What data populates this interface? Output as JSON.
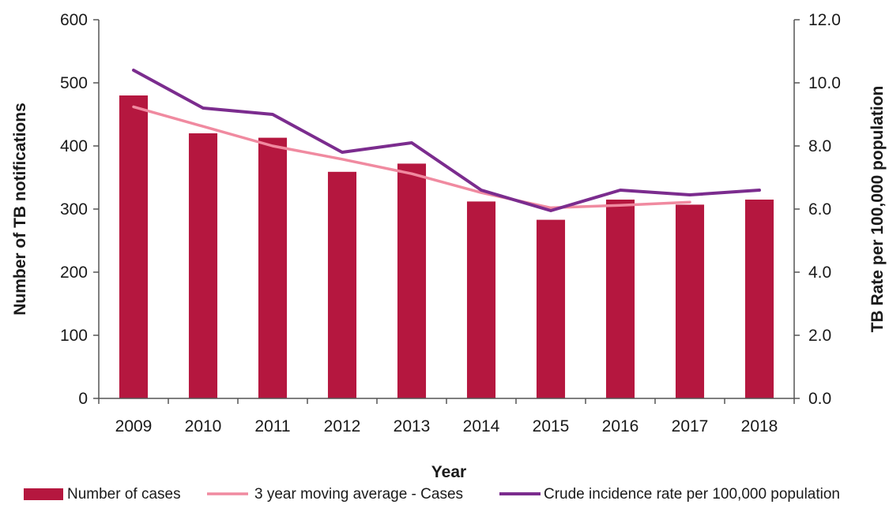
{
  "chart_data": {
    "type": "bar",
    "categories": [
      "2009",
      "2010",
      "2011",
      "2012",
      "2013",
      "2014",
      "2015",
      "2016",
      "2017",
      "2018"
    ],
    "xlabel": "Year",
    "ylabel": "Number of TB notifications",
    "y2label": "TB Rate per 100,000 population",
    "ylim": [
      0,
      600
    ],
    "y2lim": [
      0,
      12
    ],
    "yticks": [
      "0",
      "100",
      "200",
      "300",
      "400",
      "500",
      "600"
    ],
    "y2ticks": [
      "0.0",
      "2.0",
      "4.0",
      "6.0",
      "8.0",
      "10.0",
      "12.0"
    ],
    "grid": false,
    "legend_position": "bottom",
    "series": [
      {
        "name": "Number of cases",
        "kind": "bar",
        "axis": "left",
        "color": "#b5173f",
        "values": [
          480,
          420,
          413,
          359,
          372,
          312,
          283,
          315,
          307,
          315
        ]
      },
      {
        "name": "3 year moving average - Cases",
        "kind": "line",
        "axis": "left",
        "color": "#f08aa0",
        "values": [
          462,
          431,
          400,
          379,
          356,
          326,
          302,
          306,
          311,
          null
        ]
      },
      {
        "name": "Crude incidence rate per 100,000 population",
        "kind": "line",
        "axis": "right",
        "color": "#7b2c8e",
        "values": [
          10.4,
          9.2,
          9.0,
          7.8,
          8.1,
          6.6,
          5.95,
          6.6,
          6.45,
          6.6
        ]
      }
    ]
  }
}
